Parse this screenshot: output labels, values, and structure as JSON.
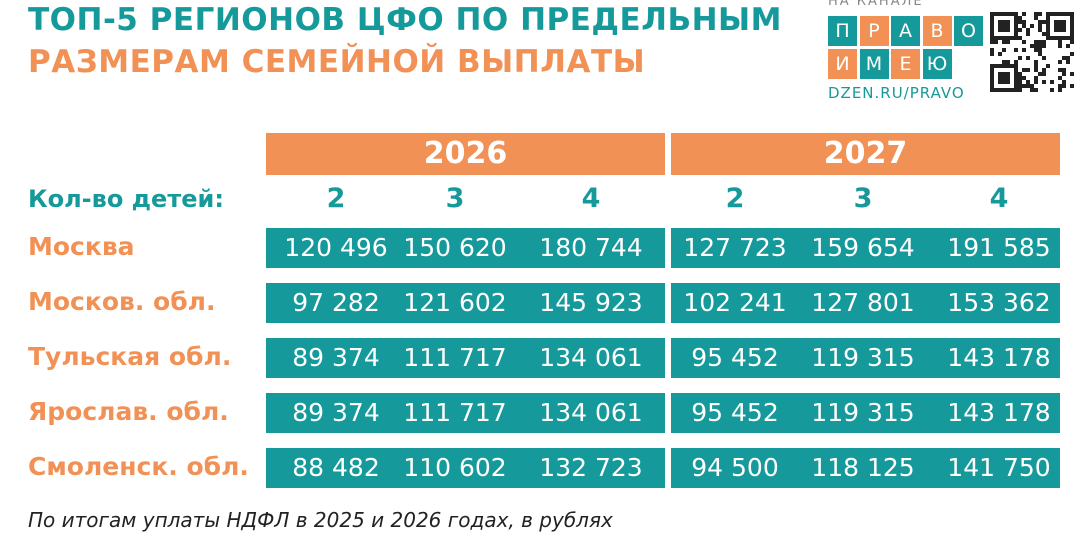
{
  "header": {
    "title_line1": "ТОП-5 РЕГИОНОВ ЦФО ПО ПРЕДЕЛЬНЫМ",
    "title_line2": "РАЗМЕРАМ СЕМЕЙНОЙ ВЫПЛАТЫ"
  },
  "logo": {
    "caption": "НА КАНАЛЕ",
    "word1": [
      "П",
      "Р",
      "А",
      "В",
      "О"
    ],
    "word2": [
      "И",
      "М",
      "Е",
      "Ю"
    ],
    "url": "DZEN.RU/PRAVO"
  },
  "table": {
    "years": [
      "2026",
      "2027"
    ],
    "children_label": "Кол-во детей:",
    "children": [
      [
        "2",
        "3",
        "4"
      ],
      [
        "2",
        "3",
        "4"
      ]
    ],
    "rows": [
      {
        "region": "Москва",
        "values": [
          "120 496",
          "150 620",
          "180 744",
          "127 723",
          "159 654",
          "191 585"
        ]
      },
      {
        "region": "Москов. обл.",
        "values": [
          "97 282",
          "121 602",
          "145 923",
          "102 241",
          "127 801",
          "153 362"
        ]
      },
      {
        "region": "Тульская обл.",
        "values": [
          "89 374",
          "111 717",
          "134 061",
          "95 452",
          "119 315",
          "143 178"
        ]
      },
      {
        "region": "Ярослав. обл.",
        "values": [
          "89 374",
          "111 717",
          "134 061",
          "95 452",
          "119 315",
          "143 178"
        ]
      },
      {
        "region": "Смоленск. обл.",
        "values": [
          "88 482",
          "110 602",
          "132 723",
          "94 500",
          "118 125",
          "141 750"
        ]
      }
    ]
  },
  "footnote": "По итогам уплаты НДФЛ в 2025 и 2026 годах, в рублях"
}
